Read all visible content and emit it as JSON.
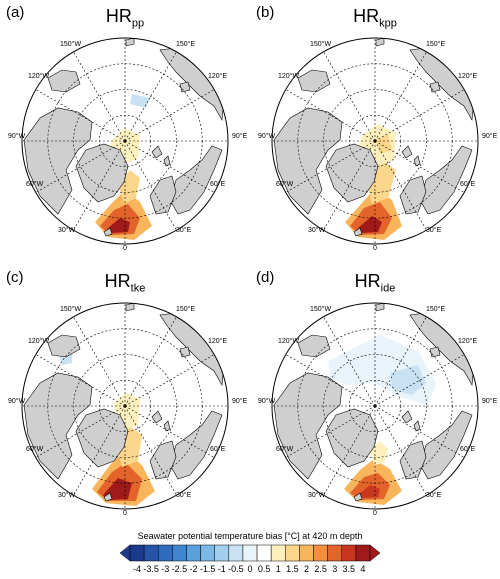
{
  "panels": [
    {
      "label": "(a)",
      "title_main": "HR",
      "title_sub": "pp",
      "variant": "a"
    },
    {
      "label": "(b)",
      "title_main": "HR",
      "title_sub": "kpp",
      "variant": "b"
    },
    {
      "label": "(c)",
      "title_main": "HR",
      "title_sub": "tke",
      "variant": "c"
    },
    {
      "label": "(d)",
      "title_main": "HR",
      "title_sub": "ide",
      "variant": "d"
    }
  ],
  "lon_labels": {
    "l150w": "150°W",
    "l150e": "150°E",
    "l120w": "120°W",
    "l120e": "120°E",
    "l90w": "90°W",
    "l90e": "90°E",
    "l60w": "60°W",
    "l60e": "60°E",
    "l30w": "30°W",
    "l30e": "30°E",
    "l0": "0"
  },
  "colorbar": {
    "title": "Seawater potential temperature bias [°C] at 420 m depth",
    "ticks": [
      "-4",
      "-3.5",
      "-3",
      "-2.5",
      "-2",
      "-1.5",
      "-1",
      "-0.5",
      "0",
      "0.5",
      "1",
      "1.5",
      "2",
      "2.5",
      "3",
      "3.5",
      "4"
    ],
    "colors": [
      "#1a3a8c",
      "#2453a8",
      "#2f6bbd",
      "#3f86cf",
      "#5aa0dc",
      "#7bb8e6",
      "#a2cfee",
      "#c8e2f4",
      "#e8f3fa",
      "#ffffff",
      "#fdf0bd",
      "#fcd68a",
      "#f9b55b",
      "#f38e3c",
      "#e4632b",
      "#c9361f",
      "#a11a1a"
    ]
  },
  "colors": {
    "land": "#cfcfcf",
    "ocean": "#ffffff",
    "grid": "#000000"
  }
}
